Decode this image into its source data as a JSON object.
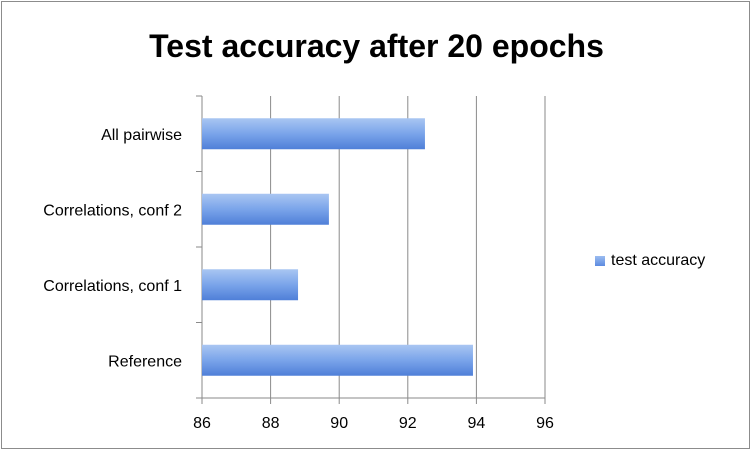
{
  "chart_data": {
    "type": "bar",
    "orientation": "horizontal",
    "title": "Test accuracy after 20 epochs",
    "xlabel": "",
    "ylabel": "",
    "categories": [
      "All pairwise",
      "Correlations, conf 2",
      "Correlations, conf 1",
      "Reference"
    ],
    "series": [
      {
        "name": "test accuracy",
        "values": [
          92.5,
          89.7,
          88.8,
          93.9
        ],
        "color": "#6f9be8"
      }
    ],
    "xlim": [
      86,
      96
    ],
    "xticks": [
      "86",
      "88",
      "90",
      "92",
      "94",
      "96"
    ],
    "grid": true,
    "legend_position": "right"
  }
}
